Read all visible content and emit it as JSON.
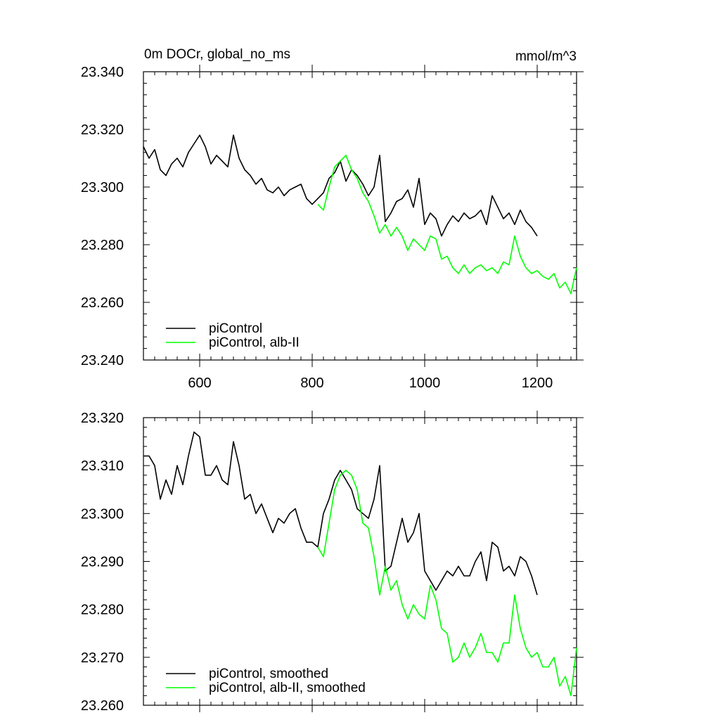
{
  "chart_data": [
    {
      "type": "line",
      "title": "0m DOCr, global_no_ms",
      "units": "mmol/m^3",
      "xlim": [
        500,
        1270
      ],
      "ylim": [
        23.24,
        23.34
      ],
      "xticks": [
        600,
        800,
        1000,
        1200
      ],
      "x_tick_labels": [
        "600",
        "800",
        "1000",
        "1200"
      ],
      "yticks": [
        23.24,
        23.26,
        23.28,
        23.3,
        23.32,
        23.34
      ],
      "y_tick_labels": [
        "23.240",
        "23.260",
        "23.280",
        "23.300",
        "23.320",
        "23.340"
      ],
      "legend_position": "bottom-left",
      "series": [
        {
          "name": "piControl",
          "color": "#000000",
          "x": [
            500,
            510,
            520,
            530,
            540,
            550,
            560,
            570,
            580,
            590,
            600,
            610,
            620,
            630,
            640,
            650,
            660,
            670,
            680,
            690,
            700,
            710,
            720,
            730,
            740,
            750,
            760,
            770,
            780,
            790,
            800,
            810,
            820,
            830,
            840,
            850,
            860,
            870,
            880,
            890,
            900,
            910,
            920,
            930,
            940,
            950,
            960,
            970,
            980,
            990,
            1000,
            1010,
            1020,
            1030,
            1040,
            1050,
            1060,
            1070,
            1080,
            1090,
            1100,
            1110,
            1120,
            1130,
            1140,
            1150,
            1160,
            1170,
            1180,
            1190,
            1200
          ],
          "y": [
            23.314,
            23.31,
            23.313,
            23.306,
            23.304,
            23.308,
            23.31,
            23.307,
            23.312,
            23.315,
            23.318,
            23.314,
            23.308,
            23.311,
            23.309,
            23.307,
            23.318,
            23.31,
            23.306,
            23.304,
            23.301,
            23.303,
            23.299,
            23.298,
            23.3,
            23.297,
            23.299,
            23.3,
            23.301,
            23.296,
            23.294,
            23.296,
            23.298,
            23.303,
            23.305,
            23.309,
            23.302,
            23.306,
            23.304,
            23.301,
            23.297,
            23.3,
            23.311,
            23.288,
            23.291,
            23.295,
            23.296,
            23.299,
            23.293,
            23.303,
            23.287,
            23.291,
            23.289,
            23.283,
            23.287,
            23.29,
            23.288,
            23.291,
            23.289,
            23.29,
            23.292,
            23.287,
            23.297,
            23.293,
            23.289,
            23.291,
            23.287,
            23.292,
            23.288,
            23.286,
            23.283
          ]
        },
        {
          "name": "piControl, alb-II",
          "color": "#00ff00",
          "x": [
            810,
            820,
            830,
            840,
            850,
            860,
            870,
            880,
            890,
            900,
            910,
            920,
            930,
            940,
            950,
            960,
            970,
            980,
            990,
            1000,
            1010,
            1020,
            1030,
            1040,
            1050,
            1060,
            1070,
            1080,
            1090,
            1100,
            1110,
            1120,
            1130,
            1140,
            1150,
            1160,
            1170,
            1180,
            1190,
            1200,
            1210,
            1220,
            1230,
            1240,
            1250,
            1260,
            1270
          ],
          "y": [
            23.294,
            23.292,
            23.3,
            23.307,
            23.309,
            23.311,
            23.306,
            23.303,
            23.298,
            23.295,
            23.29,
            23.284,
            23.287,
            23.283,
            23.286,
            23.283,
            23.278,
            23.282,
            23.28,
            23.278,
            23.283,
            23.282,
            23.275,
            23.276,
            23.272,
            23.27,
            23.273,
            23.27,
            23.272,
            23.273,
            23.271,
            23.272,
            23.27,
            23.274,
            23.273,
            23.283,
            23.276,
            23.272,
            23.27,
            23.271,
            23.269,
            23.268,
            23.27,
            23.265,
            23.267,
            23.263,
            23.272
          ]
        }
      ]
    },
    {
      "type": "line",
      "xlim": [
        500,
        1270
      ],
      "ylim": [
        23.26,
        23.32
      ],
      "xticks": [
        600,
        800,
        1000,
        1200
      ],
      "yticks": [
        23.26,
        23.27,
        23.28,
        23.29,
        23.3,
        23.31,
        23.32
      ],
      "y_tick_labels": [
        "23.260",
        "23.270",
        "23.280",
        "23.290",
        "23.300",
        "23.310",
        "23.320"
      ],
      "legend_position": "bottom-left",
      "series": [
        {
          "name": "piControl, smoothed",
          "color": "#000000",
          "x": [
            500,
            510,
            520,
            530,
            540,
            550,
            560,
            570,
            580,
            590,
            600,
            610,
            620,
            630,
            640,
            650,
            660,
            670,
            680,
            690,
            700,
            710,
            720,
            730,
            740,
            750,
            760,
            770,
            780,
            790,
            800,
            810,
            820,
            830,
            840,
            850,
            860,
            870,
            880,
            890,
            900,
            910,
            920,
            930,
            940,
            950,
            960,
            970,
            980,
            990,
            1000,
            1010,
            1020,
            1030,
            1040,
            1050,
            1060,
            1070,
            1080,
            1090,
            1100,
            1110,
            1120,
            1130,
            1140,
            1150,
            1160,
            1170,
            1180,
            1190,
            1200
          ],
          "y": [
            23.312,
            23.312,
            23.31,
            23.303,
            23.307,
            23.304,
            23.31,
            23.306,
            23.312,
            23.317,
            23.316,
            23.308,
            23.308,
            23.31,
            23.307,
            23.306,
            23.315,
            23.31,
            23.303,
            23.304,
            23.3,
            23.302,
            23.299,
            23.296,
            23.299,
            23.298,
            23.3,
            23.301,
            23.297,
            23.294,
            23.294,
            23.293,
            23.3,
            23.303,
            23.307,
            23.309,
            23.307,
            23.305,
            23.301,
            23.3,
            23.299,
            23.303,
            23.31,
            23.288,
            23.289,
            23.294,
            23.299,
            23.294,
            23.296,
            23.3,
            23.288,
            23.286,
            23.284,
            23.286,
            23.288,
            23.287,
            23.289,
            23.287,
            23.287,
            23.29,
            23.292,
            23.286,
            23.294,
            23.293,
            23.288,
            23.289,
            23.287,
            23.291,
            23.29,
            23.287,
            23.283
          ]
        },
        {
          "name": "piControl, alb-II, smoothed",
          "color": "#00ff00",
          "x": [
            810,
            820,
            830,
            840,
            850,
            860,
            870,
            880,
            890,
            900,
            910,
            920,
            930,
            940,
            950,
            960,
            970,
            980,
            990,
            1000,
            1010,
            1020,
            1030,
            1040,
            1050,
            1060,
            1070,
            1080,
            1090,
            1100,
            1110,
            1120,
            1130,
            1140,
            1150,
            1160,
            1170,
            1180,
            1190,
            1200,
            1210,
            1220,
            1230,
            1240,
            1250,
            1260,
            1270
          ],
          "y": [
            23.293,
            23.291,
            23.298,
            23.305,
            23.308,
            23.309,
            23.308,
            23.305,
            23.298,
            23.297,
            23.291,
            23.283,
            23.289,
            23.284,
            23.286,
            23.281,
            23.278,
            23.281,
            23.279,
            23.278,
            23.285,
            23.282,
            23.276,
            23.275,
            23.269,
            23.27,
            23.273,
            23.27,
            23.272,
            23.275,
            23.271,
            23.271,
            23.269,
            23.273,
            23.273,
            23.283,
            23.276,
            23.272,
            23.27,
            23.271,
            23.268,
            23.268,
            23.27,
            23.264,
            23.266,
            23.262,
            23.272
          ]
        }
      ]
    }
  ]
}
